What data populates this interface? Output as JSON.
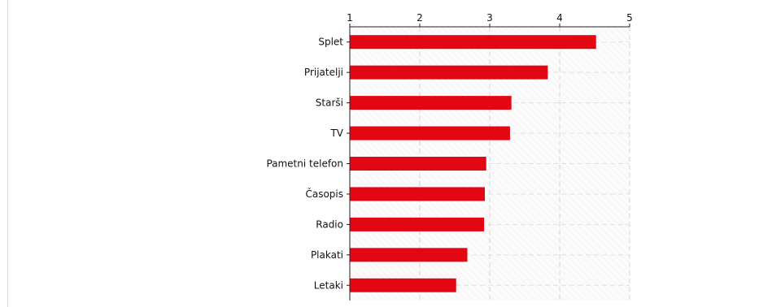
{
  "chart_data": {
    "type": "bar",
    "orientation": "horizontal",
    "categories": [
      "Splet",
      "Prijatelji",
      "Starši",
      "TV",
      "Pametni telefon",
      "Časopis",
      "Radio",
      "Plakati",
      "Letaki"
    ],
    "values": [
      4.52,
      3.83,
      3.31,
      3.29,
      2.95,
      2.93,
      2.92,
      2.68,
      2.52
    ],
    "title": "",
    "xlabel": "",
    "ylabel": "",
    "xlim": [
      1,
      5
    ],
    "xticks": [
      "1",
      "2",
      "3",
      "4",
      "5"
    ],
    "x_axis_position": "top",
    "grid": true,
    "bar_color": "#e30613"
  }
}
